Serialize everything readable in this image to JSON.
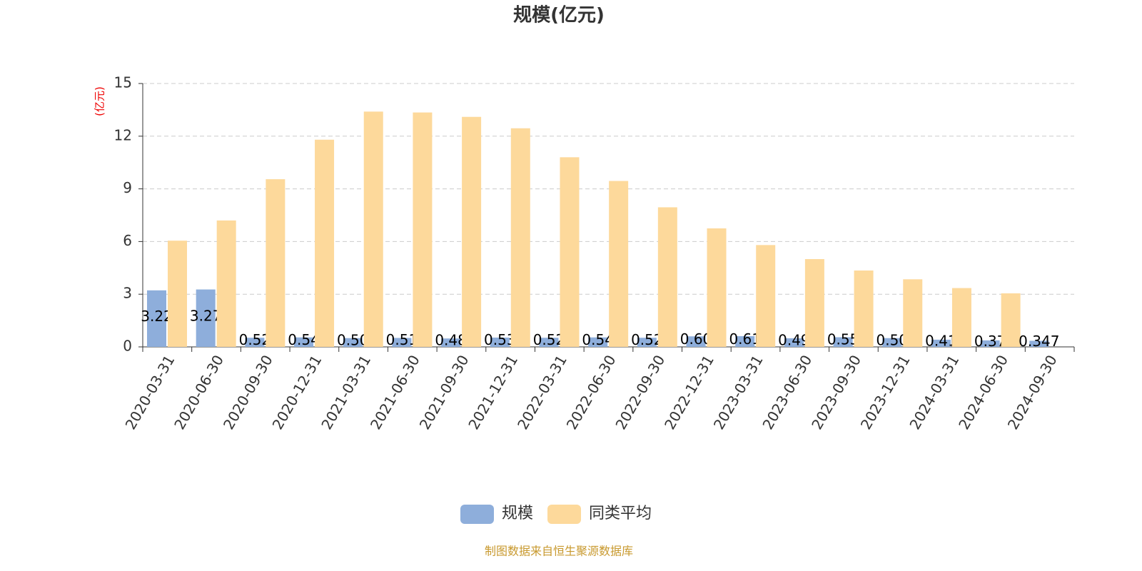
{
  "chart_data": {
    "type": "bar",
    "title": "规模(亿元)",
    "y_label": "(亿元)",
    "categories": [
      "2020-03-31",
      "2020-06-30",
      "2020-09-30",
      "2020-12-31",
      "2021-03-31",
      "2021-06-30",
      "2021-09-30",
      "2021-12-31",
      "2022-03-31",
      "2022-06-30",
      "2022-09-30",
      "2022-12-31",
      "2023-03-31",
      "2023-06-30",
      "2023-09-30",
      "2023-12-31",
      "2024-03-31",
      "2024-06-30",
      "2024-09-30"
    ],
    "series": [
      {
        "name": "规模",
        "color": "#8eaedb",
        "values": [
          3.22,
          3.27,
          0.52,
          0.54,
          0.5,
          0.51,
          0.48,
          0.53,
          0.52,
          0.54,
          0.52,
          0.6,
          0.61,
          0.49,
          0.55,
          0.5,
          0.41,
          0.37,
          0.347
        ],
        "value_labels": [
          "3.22",
          "3.27",
          "0.52",
          "0.54",
          "0.50",
          "0.51",
          "0.48",
          "0.53",
          "0.52",
          "0.54",
          "0.52",
          "0.60",
          "0.61",
          "0.49",
          "0.55",
          "0.50",
          "0.41",
          "0.37",
          "0.347"
        ]
      },
      {
        "name": "同类平均",
        "color": "#fdd99b",
        "values": [
          6.05,
          7.2,
          9.55,
          11.8,
          13.4,
          13.35,
          13.1,
          12.45,
          10.8,
          9.45,
          7.95,
          6.75,
          5.8,
          5.0,
          4.35,
          3.85,
          3.35,
          3.05,
          null
        ]
      }
    ],
    "ylim": [
      0,
      15
    ],
    "yticks": [
      0,
      3,
      6,
      9,
      12,
      15
    ],
    "grid": true,
    "source": "制图数据来自恒生聚源数据库"
  }
}
